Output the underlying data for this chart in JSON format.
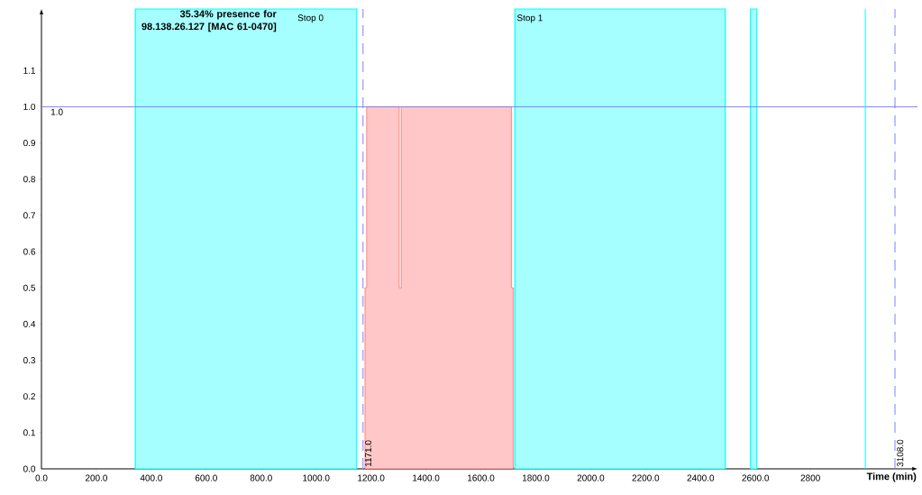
{
  "chart_data": {
    "type": "area",
    "title": "35.34% presence for 98.138.26.127 [MAC 61-0470]",
    "xlabel": "Time (min)",
    "series": [
      {
        "color": "#ff0000",
        "x": [
          1178,
          1178,
          1184,
          1184,
          1303,
          1303,
          1310,
          1310,
          1712,
          1712,
          1718,
          1718
        ],
        "values": [
          0,
          0.5,
          0.5,
          1,
          1,
          0.5,
          0.5,
          1,
          1,
          0.5,
          0.5,
          0
        ]
      }
    ],
    "xlim": [
      0,
      3190
    ],
    "ylim": [
      0,
      1.27
    ],
    "xticks": [
      {
        "value": 0,
        "label": "0.0"
      },
      {
        "value": 200,
        "label": "200.0"
      },
      {
        "value": 400,
        "label": "400.0"
      },
      {
        "value": 600,
        "label": "600.0"
      },
      {
        "value": 800,
        "label": "800.0"
      },
      {
        "value": 1000,
        "label": "1000.0"
      },
      {
        "value": 1200,
        "label": "1200.0"
      },
      {
        "value": 1400,
        "label": "1400.0"
      },
      {
        "value": 1600,
        "label": "1600.0"
      },
      {
        "value": 1800,
        "label": "1800.0"
      },
      {
        "value": 2000,
        "label": "2000.0"
      },
      {
        "value": 2200,
        "label": "2200.0"
      },
      {
        "value": 2400,
        "label": "2400.0"
      },
      {
        "value": 2600,
        "label": "2600.0"
      },
      {
        "value": 2800,
        "label": "2800"
      }
    ],
    "yticks": [
      {
        "value": 0,
        "label": "0.0"
      },
      {
        "value": 0.1,
        "label": "0.1"
      },
      {
        "value": 0.2,
        "label": "0.2"
      },
      {
        "value": 0.3,
        "label": "0.3"
      },
      {
        "value": 0.4,
        "label": "0.4"
      },
      {
        "value": 0.5,
        "label": "0.5"
      },
      {
        "value": 0.6,
        "label": "0.6"
      },
      {
        "value": 0.7,
        "label": "0.7"
      },
      {
        "value": 0.8,
        "label": "0.8"
      },
      {
        "value": 0.9,
        "label": "0.9"
      },
      {
        "value": 1.0,
        "label": "1.0"
      },
      {
        "value": 1.1,
        "label": "1.1"
      }
    ],
    "bands": [
      {
        "axis": "x",
        "from": 342,
        "to": 1148,
        "label": "Stop 0",
        "color": "#00ffff"
      },
      {
        "axis": "x",
        "from": 1724,
        "to": 2490,
        "label": "Stop 1",
        "color": "#00ffff"
      },
      {
        "axis": "x",
        "from": 2582,
        "to": 2605,
        "label": null,
        "color": "#00ffff"
      }
    ],
    "ref_lines": [
      {
        "axis": "y",
        "value": 1.0,
        "label": "1.0",
        "color": "#8080ff",
        "line_style": "solid"
      },
      {
        "axis": "x",
        "value": 1171,
        "label": "1171.0",
        "color": "#8080ff",
        "line_style": "dashed"
      },
      {
        "axis": "x",
        "value": 3000,
        "label": null,
        "color": "#00ffff",
        "line_style": "solid"
      },
      {
        "axis": "x",
        "value": 3108,
        "label": "3108.0",
        "color": "#8080ff",
        "line_style": "dashed"
      }
    ]
  }
}
